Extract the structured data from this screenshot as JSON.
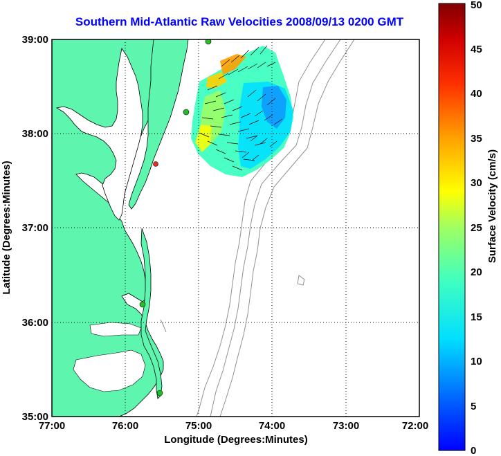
{
  "title": "Southern Mid-Atlantic Raw Velocities 2008/09/13 0200 GMT",
  "axes": {
    "xlabel": "Longitude (Degrees:Minutes)",
    "ylabel": "Latitude (Degrees:Minutes)",
    "xticks": [
      "77:00",
      "76:00",
      "75:00",
      "74:00",
      "73:00",
      "72:00"
    ],
    "yticks": [
      "39:00",
      "38:00",
      "37:00",
      "36:00",
      "35:00"
    ],
    "xrange": [
      -77,
      -72
    ],
    "yrange": [
      35,
      39
    ],
    "grid": "dotted"
  },
  "colorbar": {
    "label": "Surface Velocity (cm/s)",
    "ticks": [
      "0",
      "5",
      "10",
      "15",
      "20",
      "25",
      "30",
      "35",
      "40",
      "45",
      "50"
    ],
    "range": [
      0,
      50
    ],
    "colormap": "jet"
  },
  "colors": {
    "land": "#5ef5ae",
    "water": "#ffffff",
    "coastline": "#000000",
    "bathymetry": "#909090",
    "title": "#0000ff"
  },
  "stations": [
    {
      "lon": -75.1,
      "lat": 39.0,
      "color": "#22c022"
    },
    {
      "lon": -75.15,
      "lat": 38.22,
      "color": "#22c022"
    },
    {
      "lon": -75.55,
      "lat": 37.67,
      "color": "#e03020"
    },
    {
      "lon": -75.7,
      "lat": 36.18,
      "color": "#22c022"
    },
    {
      "lon": -75.5,
      "lat": 35.25,
      "color": "#22c022"
    }
  ]
}
